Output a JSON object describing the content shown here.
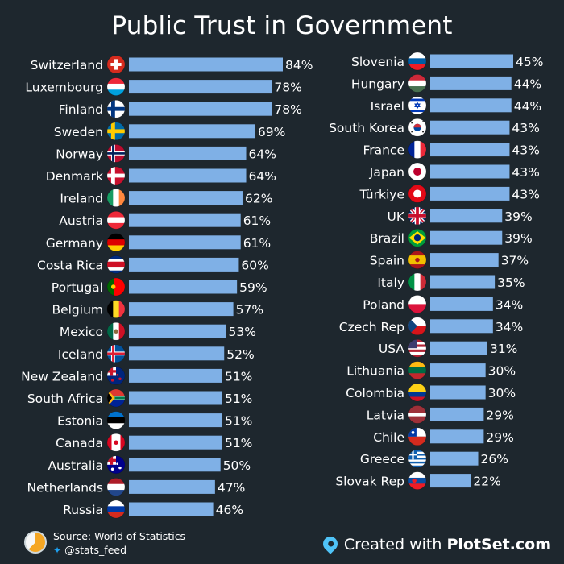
{
  "title": "Public Trust in Government",
  "source": "Source: World of Statistics",
  "handle": "@stats_feed",
  "credit_prefix": "Created with ",
  "credit_brand": "PlotSet.com",
  "icons": {
    "source": "pie-logo-icon",
    "twitter": "twitter-bird-icon",
    "credit": "map-pin-icon"
  },
  "colors": {
    "background": "#1e272e",
    "bar": "#7fb0e6",
    "text": "#ffffff"
  },
  "chart_data": {
    "type": "bar",
    "orientation": "horizontal",
    "value_suffix": "%",
    "columns": [
      {
        "categories": [
          "Switzerland",
          "Luxembourg",
          "Finland",
          "Sweden",
          "Norway",
          "Denmark",
          "Ireland",
          "Austria",
          "Germany",
          "Costa Rica",
          "Portugal",
          "Belgium",
          "Mexico",
          "Iceland",
          "New Zealand",
          "South Africa",
          "Estonia",
          "Canada",
          "Australia",
          "Netherlands",
          "Russia"
        ],
        "values": [
          84,
          78,
          78,
          69,
          64,
          64,
          62,
          61,
          61,
          60,
          59,
          57,
          53,
          52,
          51,
          51,
          51,
          51,
          50,
          47,
          46
        ],
        "flags": [
          "flag-switzerland-icon",
          "flag-luxembourg-icon",
          "flag-finland-icon",
          "flag-sweden-icon",
          "flag-norway-icon",
          "flag-denmark-icon",
          "flag-ireland-icon",
          "flag-austria-icon",
          "flag-germany-icon",
          "flag-costa-rica-icon",
          "flag-portugal-icon",
          "flag-belgium-icon",
          "flag-mexico-icon",
          "flag-iceland-icon",
          "flag-new-zealand-icon",
          "flag-south-africa-icon",
          "flag-estonia-icon",
          "flag-canada-icon",
          "flag-australia-icon",
          "flag-netherlands-icon",
          "flag-russia-icon"
        ]
      },
      {
        "categories": [
          "Slovenia",
          "Hungary",
          "Israel",
          "South Korea",
          "France",
          "Japan",
          "Türkiye",
          "UK",
          "Brazil",
          "Spain",
          "Italy",
          "Poland",
          "Czech Rep",
          "USA",
          "Lithuania",
          "Colombia",
          "Latvia",
          "Chile",
          "Greece",
          "Slovak Rep"
        ],
        "values": [
          45,
          44,
          44,
          43,
          43,
          43,
          43,
          39,
          39,
          37,
          35,
          34,
          34,
          31,
          30,
          30,
          29,
          29,
          26,
          22
        ],
        "flags": [
          "flag-slovenia-icon",
          "flag-hungary-icon",
          "flag-israel-icon",
          "flag-south-korea-icon",
          "flag-france-icon",
          "flag-japan-icon",
          "flag-turkiye-icon",
          "flag-uk-icon",
          "flag-brazil-icon",
          "flag-spain-icon",
          "flag-italy-icon",
          "flag-poland-icon",
          "flag-czech-rep-icon",
          "flag-usa-icon",
          "flag-lithuania-icon",
          "flag-colombia-icon",
          "flag-latvia-icon",
          "flag-chile-icon",
          "flag-greece-icon",
          "flag-slovak-rep-icon"
        ]
      }
    ]
  }
}
